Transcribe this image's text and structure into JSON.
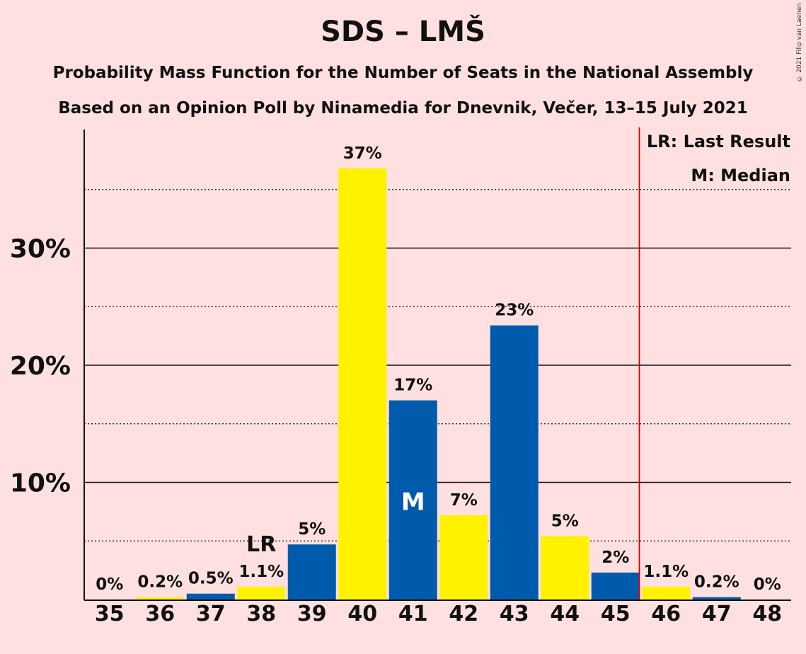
{
  "title": "SDS – LMŠ",
  "subtitle_lines": [
    "Probability Mass Function for the Number of Seats in the National Assembly",
    "Based on an Opinion Poll by Ninamedia for Dnevnik, Večer, 13–15 July 2021"
  ],
  "copyright": "© 2021 Filip van Laenen",
  "legend": {
    "last_result": "LR: Last Result",
    "median": "M: Median"
  },
  "chart_data": {
    "type": "bar",
    "title": "SDS – LMŠ",
    "categories": [
      "35",
      "36",
      "37",
      "38",
      "39",
      "40",
      "41",
      "42",
      "43",
      "44",
      "45",
      "46",
      "47",
      "48"
    ],
    "values": [
      0,
      0.2,
      0.5,
      1.1,
      4.7,
      36.8,
      17.0,
      7.2,
      23.4,
      5.4,
      2.3,
      1.1,
      0.2,
      0
    ],
    "value_labels": [
      "0%",
      "0.2%",
      "0.5%",
      "1.1%",
      "5%",
      "37%",
      "17%",
      "7%",
      "23%",
      "5%",
      "2%",
      "1.1%",
      "0.2%",
      "0%"
    ],
    "bar_colors": [
      "#005BAC",
      "#FFF200",
      "#005BAC",
      "#FFF200",
      "#005BAC",
      "#FFF200",
      "#005BAC",
      "#FFF200",
      "#005BAC",
      "#FFF200",
      "#005BAC",
      "#FFF200",
      "#005BAC",
      "#FFF200"
    ],
    "ylim": [
      0,
      40
    ],
    "yticks": [
      10,
      20,
      30
    ],
    "ytick_labels": [
      "10%",
      "20%",
      "30%"
    ],
    "minor_gridlines": [
      5,
      15,
      25,
      35
    ],
    "last_result": {
      "category": "38",
      "label": "LR"
    },
    "median": {
      "category": "41",
      "label": "M"
    },
    "majority_line_after": "45",
    "majority_line_color": "#CC0000",
    "grid": true,
    "legend_position": "top-right"
  }
}
